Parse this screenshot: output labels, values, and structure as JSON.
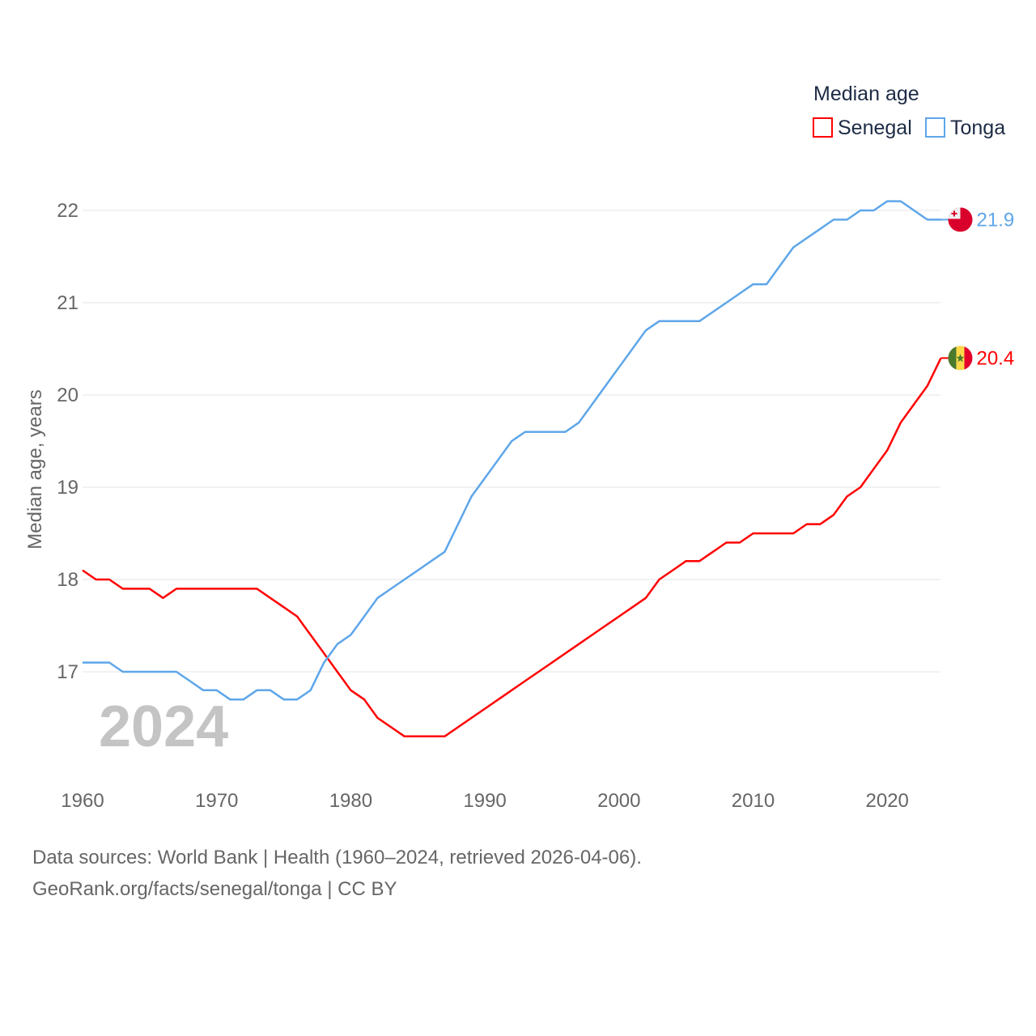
{
  "chart_data": {
    "type": "line",
    "title": "",
    "xlabel": "",
    "ylabel": "Median age, years",
    "xlim": [
      1960,
      2024
    ],
    "ylim": [
      16,
      22.5
    ],
    "x_ticks": [
      "1960",
      "1970",
      "1980",
      "1990",
      "2000",
      "2010",
      "2020"
    ],
    "y_ticks": [
      "17",
      "18",
      "19",
      "20",
      "21",
      "22"
    ],
    "grid": true,
    "legend": {
      "title": "Median age",
      "placement": "top-right"
    },
    "year_watermark": "2024",
    "x": [
      1960,
      1961,
      1962,
      1963,
      1964,
      1965,
      1966,
      1967,
      1968,
      1969,
      1970,
      1971,
      1972,
      1973,
      1974,
      1975,
      1976,
      1977,
      1978,
      1979,
      1980,
      1981,
      1982,
      1983,
      1984,
      1985,
      1986,
      1987,
      1988,
      1989,
      1990,
      1991,
      1992,
      1993,
      1994,
      1995,
      1996,
      1997,
      1998,
      1999,
      2000,
      2001,
      2002,
      2003,
      2004,
      2005,
      2006,
      2007,
      2008,
      2009,
      2010,
      2011,
      2012,
      2013,
      2014,
      2015,
      2016,
      2017,
      2018,
      2019,
      2020,
      2021,
      2022,
      2023,
      2024
    ],
    "series": [
      {
        "name": "Senegal",
        "color": "#ff0000",
        "end_label": "20.4",
        "flag": "senegal-flag",
        "values": [
          18.1,
          18.0,
          18.0,
          17.9,
          17.9,
          17.9,
          17.8,
          17.9,
          17.9,
          17.9,
          17.9,
          17.9,
          17.9,
          17.9,
          17.8,
          17.7,
          17.6,
          17.4,
          17.2,
          17.0,
          16.8,
          16.7,
          16.5,
          16.4,
          16.3,
          16.3,
          16.3,
          16.3,
          16.4,
          16.5,
          16.6,
          16.7,
          16.8,
          16.9,
          17.0,
          17.1,
          17.2,
          17.3,
          17.4,
          17.5,
          17.6,
          17.7,
          17.8,
          18.0,
          18.1,
          18.2,
          18.2,
          18.3,
          18.4,
          18.4,
          18.5,
          18.5,
          18.5,
          18.5,
          18.6,
          18.6,
          18.7,
          18.9,
          19.0,
          19.2,
          19.4,
          19.7,
          19.9,
          20.1,
          20.4
        ]
      },
      {
        "name": "Tonga",
        "color": "#5ea6ea",
        "end_label": "21.9",
        "flag": "tonga-flag",
        "values": [
          17.1,
          17.1,
          17.1,
          17.0,
          17.0,
          17.0,
          17.0,
          17.0,
          16.9,
          16.8,
          16.8,
          16.7,
          16.7,
          16.8,
          16.8,
          16.7,
          16.7,
          16.8,
          17.1,
          17.3,
          17.4,
          17.6,
          17.8,
          17.9,
          18.0,
          18.1,
          18.2,
          18.3,
          18.6,
          18.9,
          19.1,
          19.3,
          19.5,
          19.6,
          19.6,
          19.6,
          19.6,
          19.7,
          19.9,
          20.1,
          20.3,
          20.5,
          20.7,
          20.8,
          20.8,
          20.8,
          20.8,
          20.9,
          21.0,
          21.1,
          21.2,
          21.2,
          21.4,
          21.6,
          21.7,
          21.8,
          21.9,
          21.9,
          22.0,
          22.0,
          22.1,
          22.1,
          22.0,
          21.9,
          21.9
        ]
      }
    ]
  },
  "footer": {
    "line1": "Data sources: World Bank | Health (1960–2024, retrieved 2026-04-06).",
    "line2": "GeoRank.org/facts/senegal/tonga | CC BY"
  }
}
